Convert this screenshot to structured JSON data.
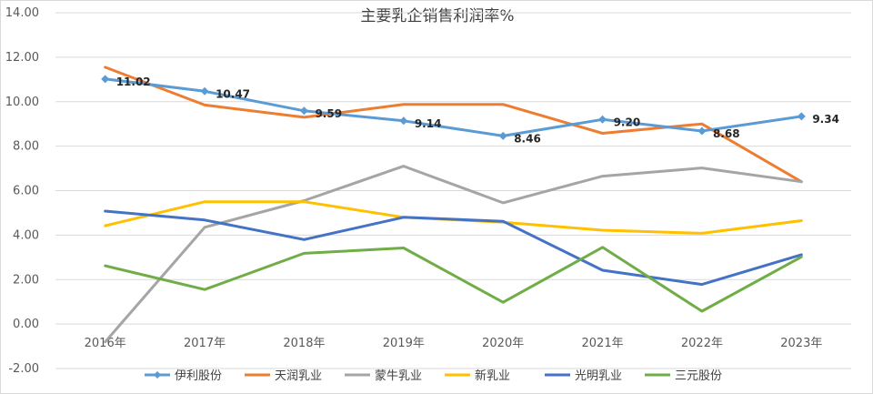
{
  "chart_data": {
    "type": "line",
    "title": "主要乳企销售利润率%",
    "xlabel": "",
    "ylabel": "",
    "categories": [
      "2016年",
      "2017年",
      "2018年",
      "2019年",
      "2020年",
      "2021年",
      "2022年",
      "2023年"
    ],
    "ylim": [
      -2,
      14
    ],
    "yticks": [
      "-2.00",
      "0.00",
      "2.00",
      "4.00",
      "6.00",
      "8.00",
      "10.00",
      "12.00",
      "14.00"
    ],
    "grid": true,
    "legend": "bottom",
    "series": [
      {
        "name": "伊利股份",
        "color": "#5b9bd5",
        "marker": "diamond",
        "values": [
          11.02,
          10.47,
          9.59,
          9.14,
          8.46,
          9.2,
          8.68,
          9.34
        ],
        "labels": [
          "11.02",
          "10.47",
          "9.59",
          "9.14",
          "8.46",
          "9.20",
          "8.68",
          "9.34"
        ]
      },
      {
        "name": "天润乳业",
        "color": "#ed7d31",
        "values": [
          11.55,
          9.85,
          9.3,
          9.88,
          9.88,
          8.58,
          9.0,
          6.4
        ]
      },
      {
        "name": "蒙牛乳业",
        "color": "#a5a5a5",
        "values": [
          -0.8,
          4.35,
          5.55,
          7.1,
          5.45,
          6.65,
          7.02,
          6.4
        ]
      },
      {
        "name": "新乳业",
        "color": "#ffc000",
        "values": [
          4.42,
          5.5,
          5.5,
          4.8,
          4.58,
          4.22,
          4.08,
          4.65
        ]
      },
      {
        "name": "光明乳业",
        "color": "#4472c4",
        "values": [
          5.08,
          4.68,
          3.8,
          4.8,
          4.62,
          2.42,
          1.78,
          3.12
        ]
      },
      {
        "name": "三元股份",
        "color": "#70ad47",
        "values": [
          2.62,
          1.55,
          3.18,
          3.42,
          0.98,
          3.45,
          0.58,
          3.02
        ]
      }
    ]
  }
}
